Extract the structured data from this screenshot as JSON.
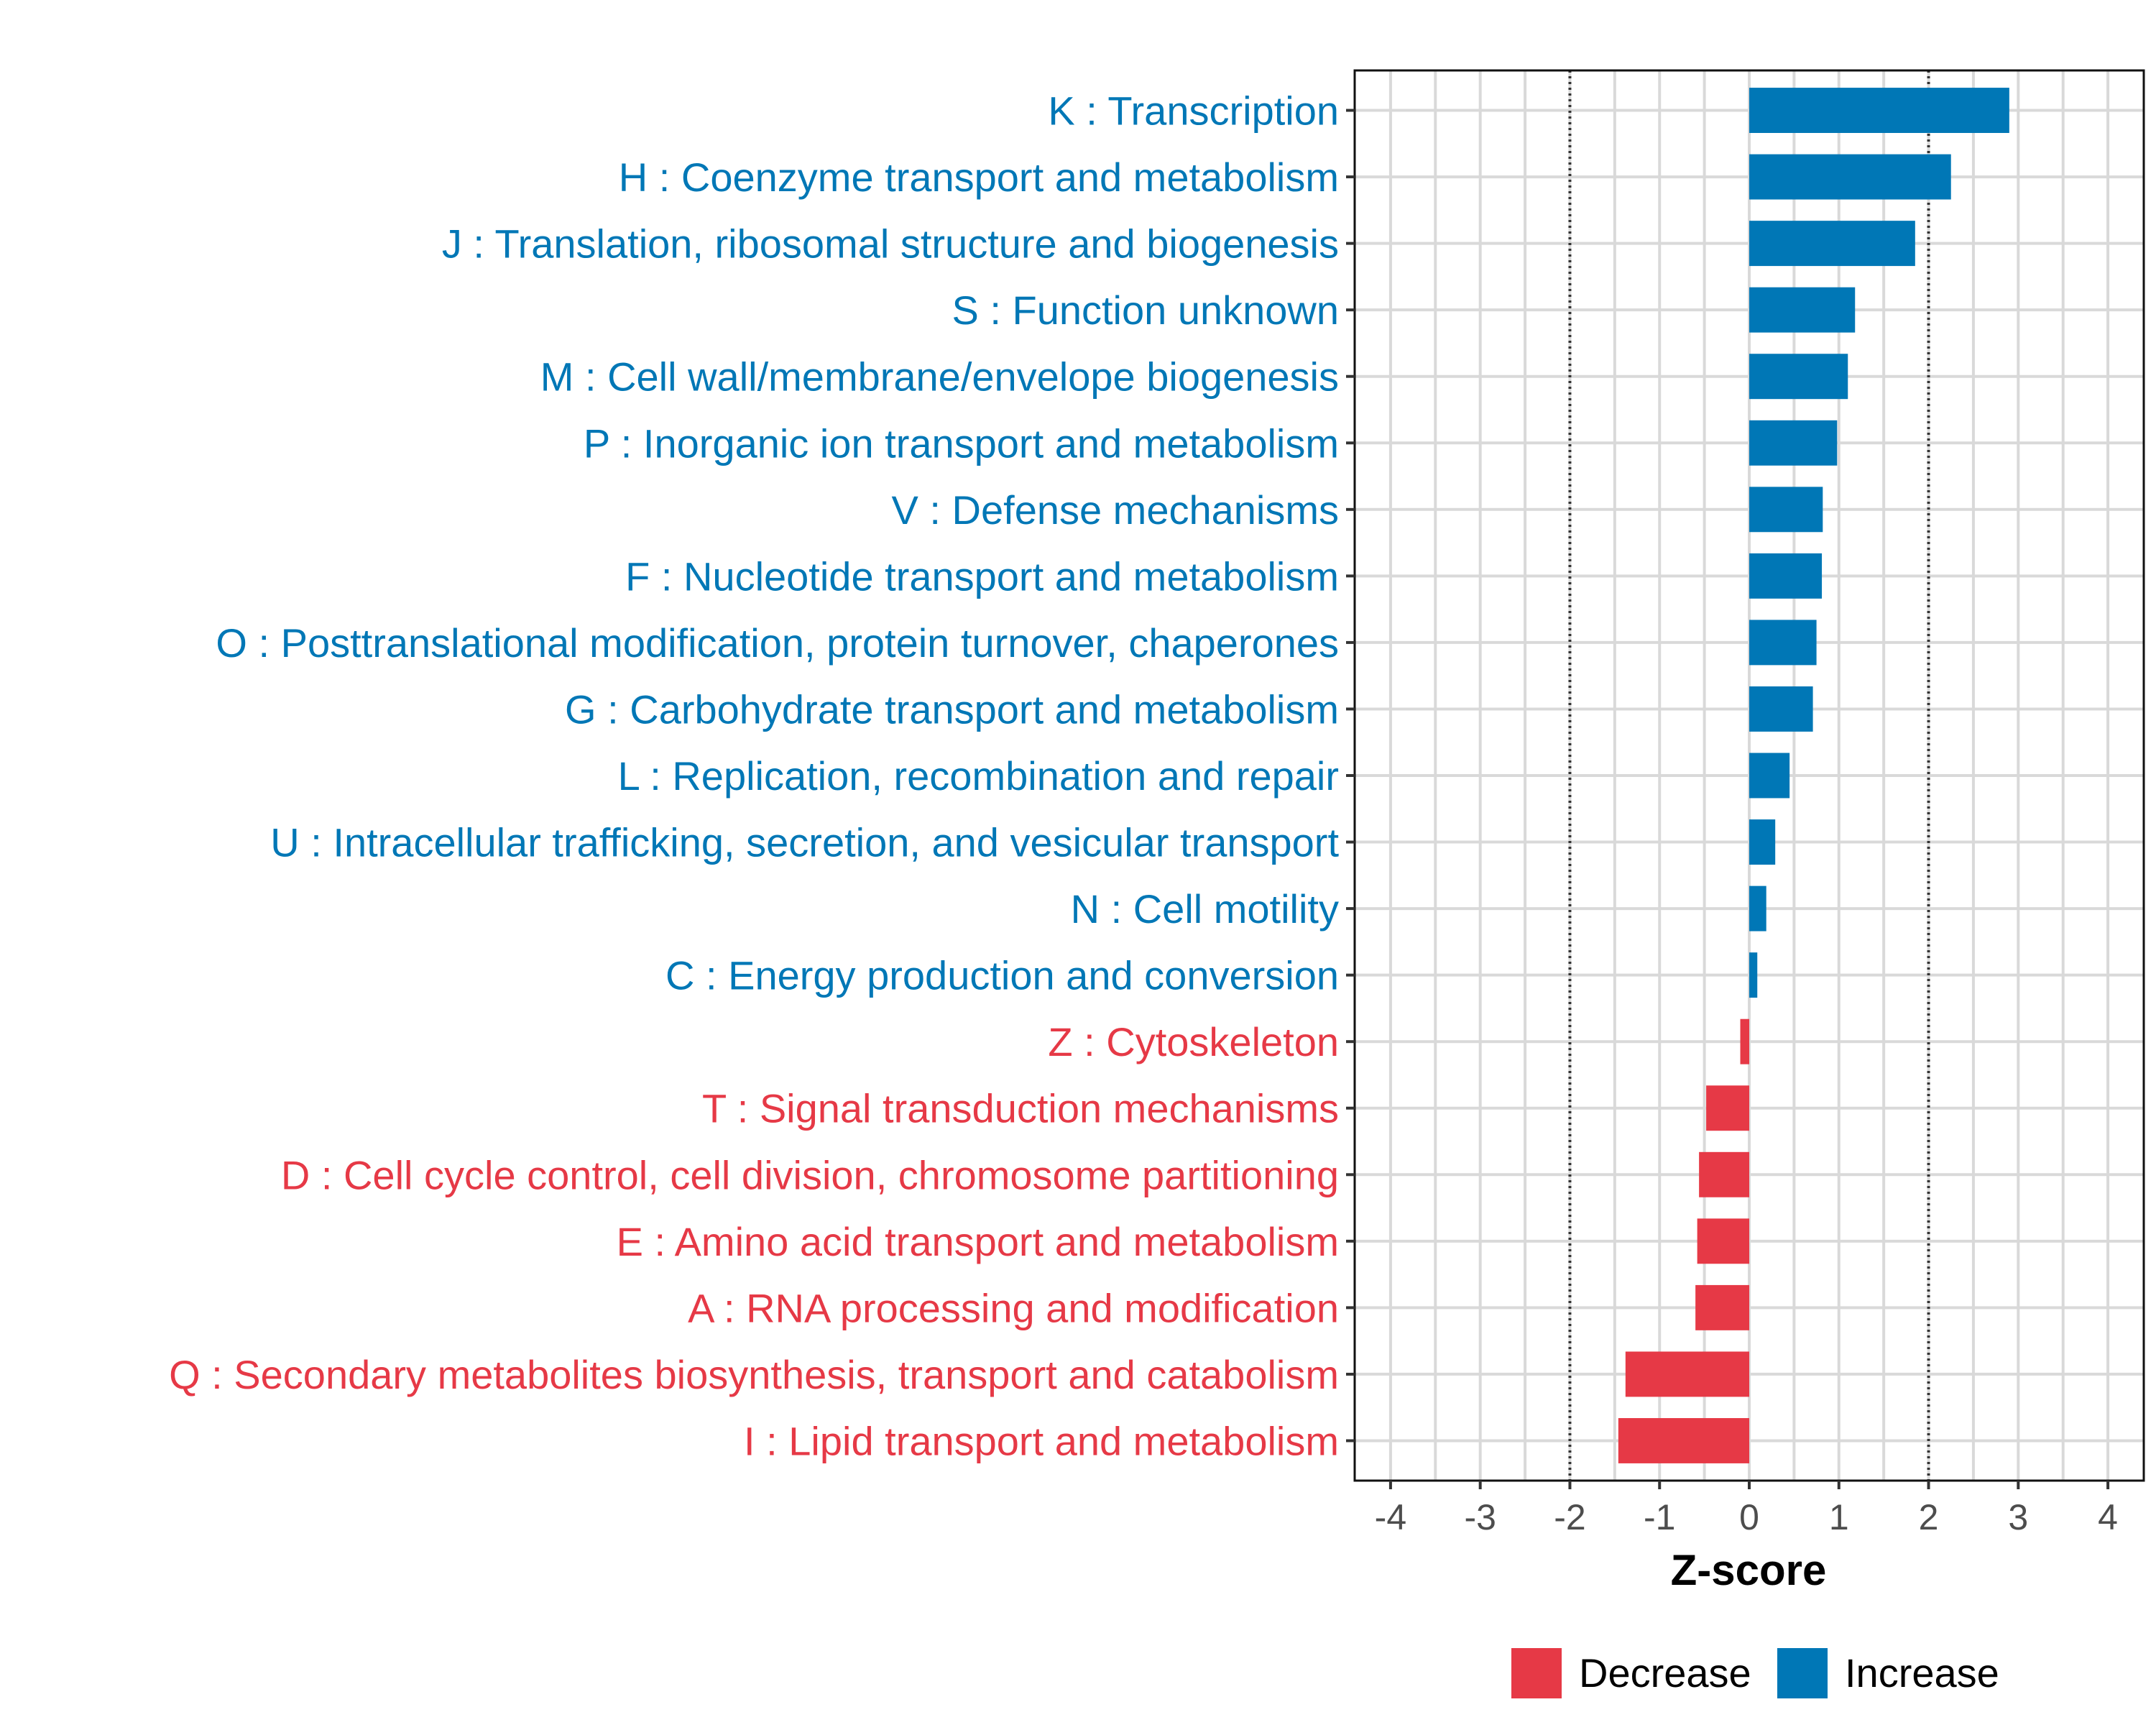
{
  "chart_data": {
    "type": "bar",
    "orientation": "horizontal",
    "title": "",
    "xlabel": "Z-score",
    "ylabel": "",
    "xlim": [
      -4.4,
      4.4
    ],
    "x_ticks": [
      -4,
      -3,
      -2,
      -1,
      0,
      1,
      2,
      3,
      4
    ],
    "x_tick_labels": [
      "-4",
      "-3",
      "-2",
      "-1",
      "0",
      "1",
      "2",
      "3",
      "4"
    ],
    "reference_lines": [
      -2,
      2
    ],
    "grid": true,
    "legend_position": "bottom",
    "colors": {
      "Decrease": "#e63946",
      "Increase": "#0077b6"
    },
    "legend": [
      {
        "label": "Decrease",
        "color": "#e63946"
      },
      {
        "label": "Increase",
        "color": "#0077b6"
      }
    ],
    "categories": [
      "K : Transcription",
      "H : Coenzyme transport and metabolism",
      "J : Translation, ribosomal structure and biogenesis",
      "S : Function unknown",
      "M : Cell wall/membrane/envelope biogenesis",
      "P : Inorganic ion transport and metabolism",
      "V : Defense mechanisms",
      "F : Nucleotide transport and metabolism",
      "O : Posttranslational modification, protein turnover, chaperones",
      "G : Carbohydrate transport and metabolism",
      "L : Replication, recombination and repair",
      "U : Intracellular trafficking, secretion, and vesicular transport",
      "N : Cell motility",
      "C : Energy production and conversion",
      "Z : Cytoskeleton",
      "T : Signal transduction mechanisms",
      "D : Cell cycle control, cell division, chromosome partitioning",
      "E : Amino acid transport and metabolism",
      "A : RNA processing and modification",
      "Q : Secondary metabolites biosynthesis, transport and catabolism",
      "I : Lipid transport and metabolism"
    ],
    "values": [
      2.9,
      2.25,
      1.85,
      1.18,
      1.1,
      0.98,
      0.82,
      0.81,
      0.75,
      0.71,
      0.45,
      0.29,
      0.19,
      0.09,
      -0.1,
      -0.48,
      -0.56,
      -0.58,
      -0.6,
      -1.38,
      -1.46
    ],
    "direction": [
      "Increase",
      "Increase",
      "Increase",
      "Increase",
      "Increase",
      "Increase",
      "Increase",
      "Increase",
      "Increase",
      "Increase",
      "Increase",
      "Increase",
      "Increase",
      "Increase",
      "Decrease",
      "Decrease",
      "Decrease",
      "Decrease",
      "Decrease",
      "Decrease",
      "Decrease"
    ]
  }
}
